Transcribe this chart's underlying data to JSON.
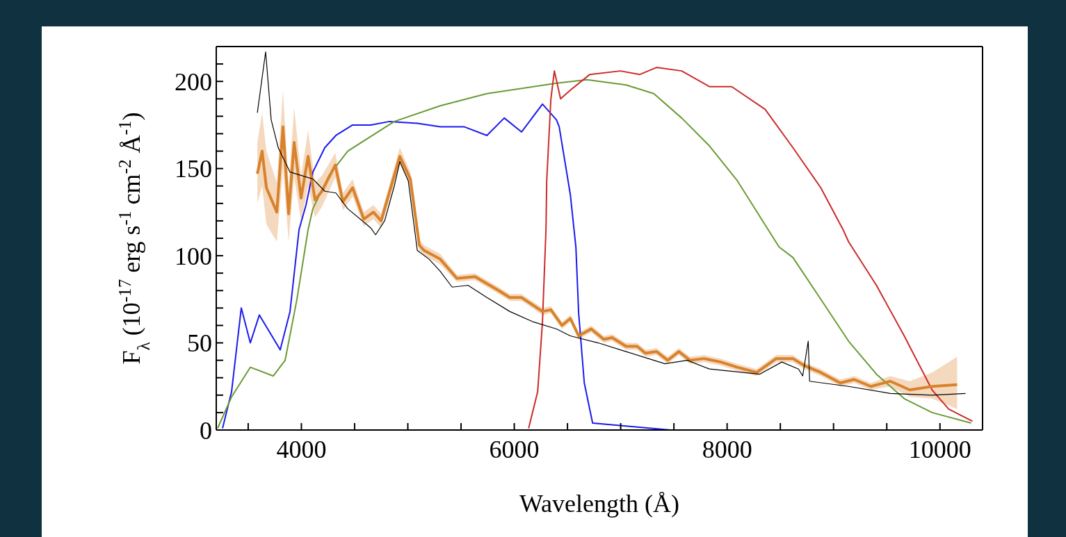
{
  "chart_data": {
    "type": "line",
    "xlabel": "Wavelength (Å)",
    "ylabel": "F$_{λ}$ (10$^{-17}$ erg s$^{-1}$ cm$^{-2}$ Å$^{-1}$)",
    "xlim": [
      3200,
      10400
    ],
    "ylim": [
      0,
      220
    ],
    "xticks": [
      {
        "value": 3500,
        "label": null
      },
      4000,
      {
        "value": 4500,
        "label": null
      },
      {
        "value": 5000,
        "label": null
      },
      {
        "value": 5500,
        "label": null
      },
      6000,
      {
        "value": 6500,
        "label": null
      },
      {
        "value": 7000,
        "label": null
      },
      {
        "value": 7500,
        "label": null
      },
      8000,
      {
        "value": 8500,
        "label": null
      },
      {
        "value": 9000,
        "label": null
      },
      {
        "value": 9500,
        "label": null
      },
      10000
    ],
    "yticks": [
      0,
      {
        "value": 10,
        "label": null
      },
      {
        "value": 20,
        "label": null
      },
      {
        "value": 30,
        "label": null
      },
      {
        "value": 40,
        "label": null
      },
      50,
      {
        "value": 60,
        "label": null
      },
      {
        "value": 70,
        "label": null
      },
      {
        "value": 80,
        "label": null
      },
      {
        "value": 90,
        "label": null
      },
      100,
      {
        "value": 110,
        "label": null
      },
      {
        "value": 120,
        "label": null
      },
      {
        "value": 130,
        "label": null
      },
      {
        "value": 140,
        "label": null
      },
      150,
      {
        "value": 160,
        "label": null
      },
      {
        "value": 170,
        "label": null
      },
      {
        "value": 180,
        "label": null
      },
      {
        "value": 190,
        "label": null
      },
      200,
      {
        "value": 210,
        "label": null
      }
    ],
    "grid": false,
    "legend": false,
    "marker": "none",
    "line_style": "solid",
    "series": [
      {
        "color": "#1a1aee",
        "x": [
          3259,
          3344,
          3435,
          3520,
          3605,
          3801,
          3893,
          3978,
          4043,
          4108,
          4220,
          4324,
          4481,
          4651,
          4827,
          5089,
          5305,
          5527,
          5743,
          5906,
          6069,
          6265,
          6396,
          6422,
          6527,
          6579,
          6605,
          6658,
          6736,
          7468
        ],
        "values": [
          1,
          22,
          70,
          50,
          66,
          46,
          68,
          115,
          129,
          148,
          162,
          169,
          175,
          175,
          177,
          176,
          174,
          174,
          169,
          179,
          171,
          187,
          178,
          174,
          135,
          105,
          67,
          27,
          4,
          0
        ]
      },
      {
        "color": "#6b9a35",
        "x": [
          3213,
          3344,
          3520,
          3736,
          3847,
          3958,
          4063,
          4108,
          4259,
          4435,
          4873,
          5305,
          5743,
          6396,
          6684,
          7050,
          7311,
          7573,
          7834,
          8096,
          8488,
          8618,
          8880,
          9141,
          9403,
          9664,
          9926,
          10292
        ],
        "values": [
          1,
          19,
          36,
          31,
          40,
          75,
          115,
          127,
          146,
          160,
          177,
          186,
          193,
          199,
          201,
          198,
          193,
          179,
          163,
          143,
          105,
          99,
          75,
          51,
          32,
          18,
          10,
          4
        ]
      },
      {
        "color": "#cc2a2a",
        "x": [
          6135,
          6220,
          6265,
          6298,
          6305,
          6344,
          6377,
          6435,
          6527,
          6710,
          6997,
          7180,
          7337,
          7573,
          7834,
          8043,
          8357,
          8618,
          8880,
          9089,
          9141,
          9403,
          9664,
          9926,
          10082,
          10305
        ],
        "values": [
          1,
          22,
          62,
          115,
          143,
          190,
          206,
          190,
          195,
          204,
          206,
          204,
          208,
          206,
          197,
          197,
          184,
          162,
          139,
          115,
          108,
          83,
          54,
          23,
          12,
          5
        ]
      },
      {
        "color": "#d9822b",
        "x": [
          3586,
          3631,
          3671,
          3769,
          3827,
          3880,
          3932,
          3997,
          4063,
          4128,
          4193,
          4318,
          4390,
          4481,
          4586,
          4677,
          4749,
          4925,
          5024,
          5108,
          5154,
          5305,
          5461,
          5631,
          5854,
          5958,
          6069,
          6265,
          6344,
          6448,
          6527,
          6605,
          6723,
          6841,
          6919,
          7050,
          7154,
          7233,
          7337,
          7442,
          7546,
          7651,
          7782,
          7939,
          8096,
          8278,
          8461,
          8618,
          8723,
          8880,
          9063,
          9194,
          9350,
          9533,
          9716,
          9926,
          10161
        ],
        "values": [
          147,
          160,
          139,
          125,
          174,
          124,
          165,
          133,
          157,
          132,
          137,
          152,
          131,
          139,
          121,
          125,
          120,
          157,
          144,
          106,
          103,
          98,
          87,
          88,
          80,
          76,
          76,
          68,
          69,
          60,
          64,
          54,
          58,
          52,
          53,
          48,
          48,
          44,
          45,
          40,
          45,
          40,
          41,
          39,
          36,
          33,
          41,
          41,
          37,
          33,
          27,
          29,
          25,
          28,
          23,
          25,
          26
        ],
        "lower": [
          130,
          140,
          118,
          108,
          150,
          108,
          145,
          120,
          140,
          122,
          128,
          145,
          126,
          134,
          117,
          121,
          116,
          152,
          140,
          103,
          100,
          95,
          85,
          86,
          78,
          74,
          74,
          66,
          67,
          58,
          62,
          52,
          56,
          50,
          51,
          46,
          46,
          42,
          43,
          38,
          43,
          38,
          39,
          37,
          34,
          31,
          39,
          39,
          35,
          31,
          25,
          27,
          23,
          25,
          19,
          18,
          12
        ],
        "upper": [
          165,
          182,
          160,
          142,
          195,
          140,
          185,
          146,
          172,
          142,
          146,
          159,
          136,
          144,
          125,
          129,
          124,
          162,
          148,
          109,
          106,
          101,
          89,
          90,
          82,
          78,
          78,
          70,
          71,
          62,
          66,
          56,
          60,
          54,
          55,
          50,
          50,
          46,
          47,
          42,
          47,
          42,
          43,
          41,
          38,
          35,
          43,
          43,
          39,
          35,
          29,
          31,
          27,
          31,
          28,
          33,
          42
        ]
      },
      {
        "color": "#000000",
        "x": [
          3586,
          3664,
          3716,
          3782,
          3893,
          4108,
          4220,
          4324,
          4435,
          4651,
          4697,
          4782,
          4873,
          4925,
          5004,
          5089,
          5200,
          5305,
          5416,
          5566,
          5743,
          5958,
          6180,
          6396,
          6527,
          6788,
          7050,
          7416,
          7625,
          7834,
          8305,
          8514,
          8671,
          8710,
          8762,
          8775,
          9141,
          9533,
          9926,
          10240
        ],
        "values": [
          182,
          217,
          178,
          162,
          148,
          144,
          137,
          136,
          127,
          116,
          112,
          120,
          140,
          154,
          143,
          103,
          98,
          91,
          82,
          83,
          76,
          68,
          62,
          58,
          54,
          50,
          45,
          38,
          40,
          35,
          32,
          39,
          35,
          31,
          51,
          28,
          25,
          21,
          20,
          21
        ]
      }
    ]
  }
}
